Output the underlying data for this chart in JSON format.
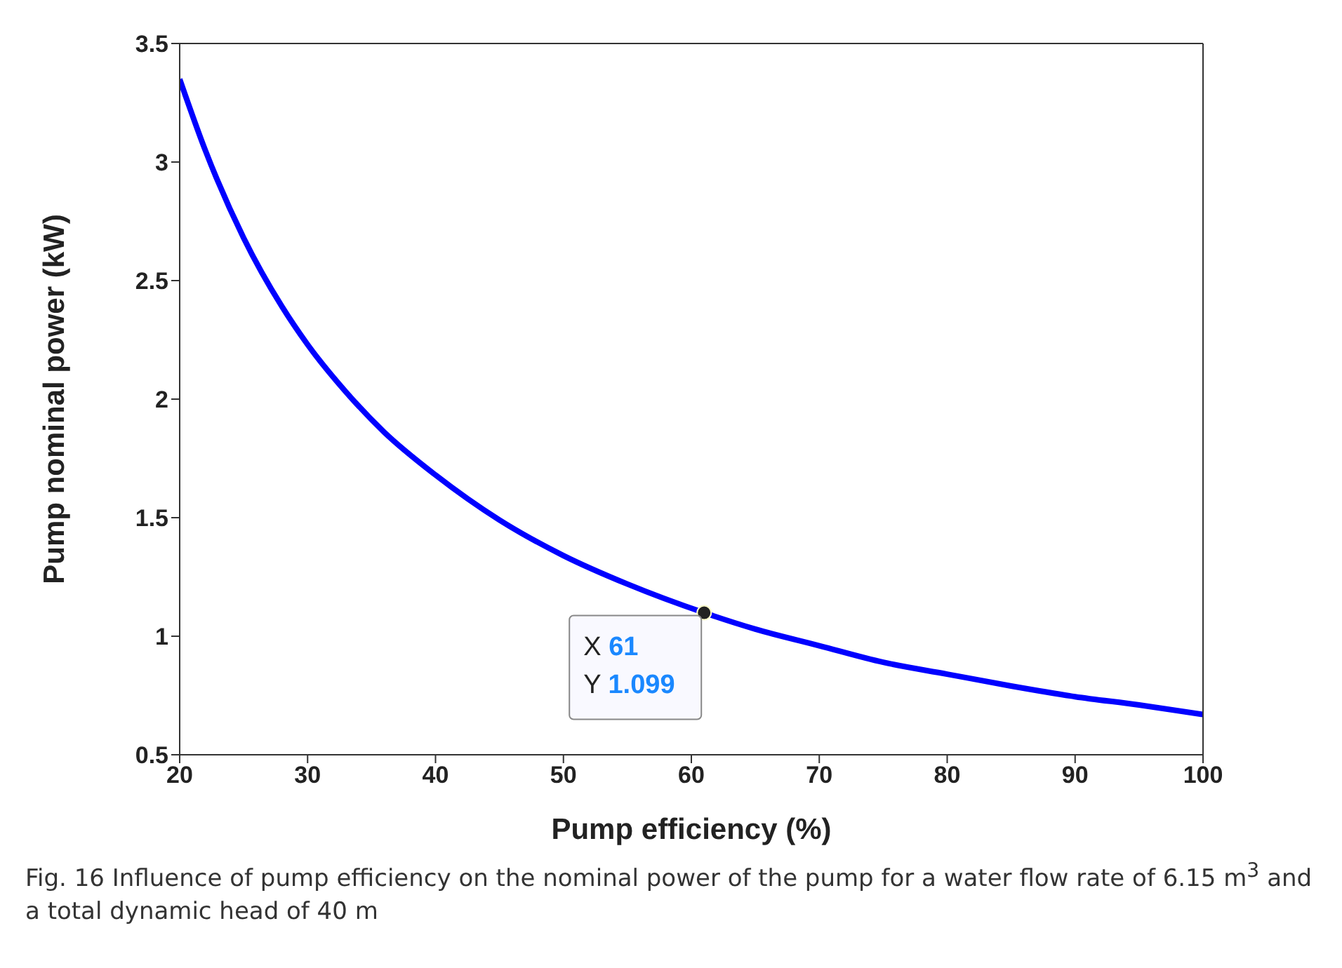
{
  "chart_data": {
    "type": "line",
    "xlabel": "Pump efficiency (%)",
    "ylabel": "Pump nominal power (kW)",
    "x": [
      20,
      22,
      25,
      28,
      30,
      33,
      36,
      40,
      45,
      50,
      55,
      61,
      65,
      70,
      75,
      80,
      85,
      90,
      95,
      100
    ],
    "series": [
      {
        "color": "#0000ff",
        "values": [
          3.35,
          3.05,
          2.68,
          2.39,
          2.23,
          2.03,
          1.86,
          1.68,
          1.49,
          1.34,
          1.22,
          1.099,
          1.03,
          0.96,
          0.89,
          0.84,
          0.79,
          0.745,
          0.71,
          0.67
        ]
      }
    ],
    "xlim": [
      20,
      100
    ],
    "xticks": [
      20,
      30,
      40,
      50,
      60,
      70,
      80,
      90,
      100
    ],
    "ylim": [
      0.5,
      3.5
    ],
    "yticks": [
      0.5,
      1,
      1.5,
      2,
      2.5,
      3,
      3.5
    ],
    "grid": false,
    "marker": "none",
    "line_style": "solid",
    "annotations": [
      {
        "text": "X 61\nY 1.099",
        "x": 61,
        "y": 1.099
      },
      "Fig. 16  Influence of pump efficiency on the nominal power of the pump for a water flow rate of 6.15 m$^{3}$ and a total dynamic head of 40 m"
    ]
  }
}
